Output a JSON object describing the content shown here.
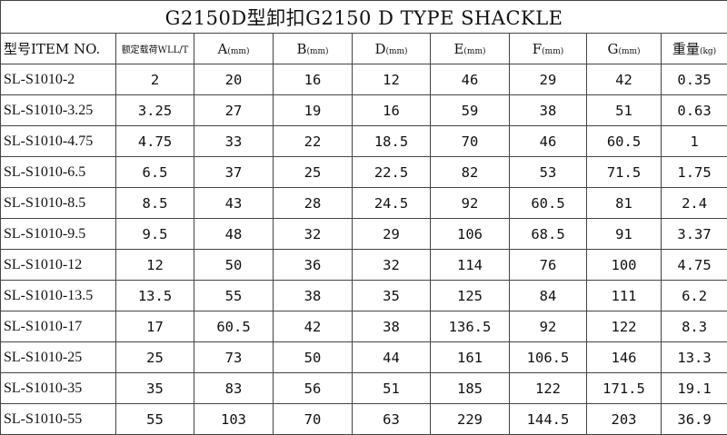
{
  "title": "G2150D型卸扣G2150 D TYPE SHACKLE",
  "headers": [
    {
      "label": "型号ITEM NO.",
      "unit": ""
    },
    {
      "label": "额定载荷WLL/T",
      "unit": ""
    },
    {
      "label": "A",
      "unit": "(mm)"
    },
    {
      "label": "B",
      "unit": "(mm)"
    },
    {
      "label": "D",
      "unit": "(mm)"
    },
    {
      "label": "E",
      "unit": "(mm)"
    },
    {
      "label": "F",
      "unit": "(mm)"
    },
    {
      "label": "G",
      "unit": "(mm)"
    },
    {
      "label": "重量",
      "unit": "(kg)"
    }
  ],
  "rows": [
    [
      "SL-S1010-2",
      "2",
      "20",
      "16",
      "12",
      "46",
      "29",
      "42",
      "0.35"
    ],
    [
      "SL-S1010-3.25",
      "3.25",
      "27",
      "19",
      "16",
      "59",
      "38",
      "51",
      "0.63"
    ],
    [
      "SL-S1010-4.75",
      "4.75",
      "33",
      "22",
      "18.5",
      "70",
      "46",
      "60.5",
      "1"
    ],
    [
      "SL-S1010-6.5",
      "6.5",
      "37",
      "25",
      "22.5",
      "82",
      "53",
      "71.5",
      "1.75"
    ],
    [
      "SL-S1010-8.5",
      "8.5",
      "43",
      "28",
      "24.5",
      "92",
      "60.5",
      "81",
      "2.4"
    ],
    [
      "SL-S1010-9.5",
      "9.5",
      "48",
      "32",
      "29",
      "106",
      "68.5",
      "91",
      "3.37"
    ],
    [
      "SL-S1010-12",
      "12",
      "50",
      "36",
      "32",
      "114",
      "76",
      "100",
      "4.75"
    ],
    [
      "SL-S1010-13.5",
      "13.5",
      "55",
      "38",
      "35",
      "125",
      "84",
      "111",
      "6.2"
    ],
    [
      "SL-S1010-17",
      "17",
      "60.5",
      "42",
      "38",
      "136.5",
      "92",
      "122",
      "8.3"
    ],
    [
      "SL-S1010-25",
      "25",
      "73",
      "50",
      "44",
      "161",
      "106.5",
      "146",
      "13.3"
    ],
    [
      "SL-S1010-35",
      "35",
      "83",
      "56",
      "51",
      "185",
      "122",
      "171.5",
      "19.1"
    ],
    [
      "SL-S1010-55",
      "55",
      "103",
      "70",
      "63",
      "229",
      "144.5",
      "203",
      "36.9"
    ]
  ]
}
